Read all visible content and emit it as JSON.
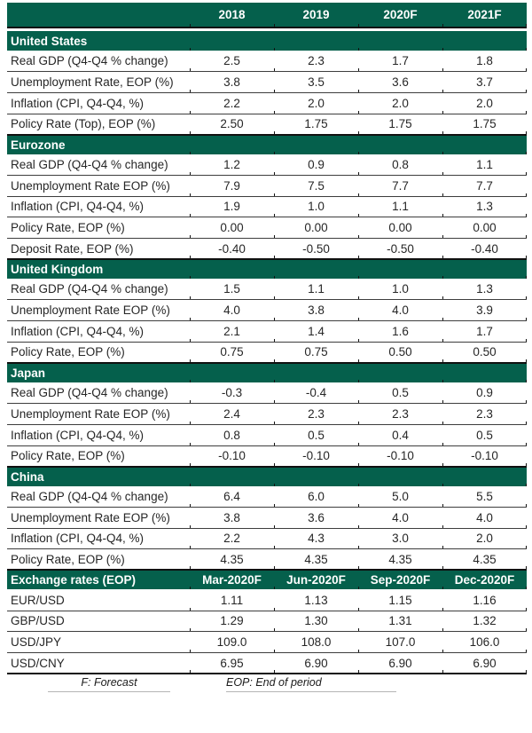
{
  "colors": {
    "brand_green": "#05604C",
    "heavy_rule": "#101010",
    "row_rule": "#3d3d3d",
    "body_text": "#262626",
    "header_text": "#ffffff",
    "footnote_rule": "#b4b4b4"
  },
  "chart_data": {
    "type": "table",
    "header": {
      "columns": [
        "2018",
        "2019",
        "2020F",
        "2021F"
      ]
    },
    "sections": [
      {
        "title": "United States",
        "rows": [
          {
            "label": "Real GDP (Q4-Q4 % change)",
            "values": [
              "2.5",
              "2.3",
              "1.7",
              "1.8"
            ]
          },
          {
            "label": "Unemployment Rate, EOP (%)",
            "values": [
              "3.8",
              "3.5",
              "3.6",
              "3.7"
            ]
          },
          {
            "label": "Inflation (CPI, Q4-Q4, %)",
            "values": [
              "2.2",
              "2.0",
              "2.0",
              "2.0"
            ]
          },
          {
            "label": "Policy Rate (Top), EOP (%)",
            "values": [
              "2.50",
              "1.75",
              "1.75",
              "1.75"
            ]
          }
        ]
      },
      {
        "title": "Eurozone",
        "rows": [
          {
            "label": "Real GDP (Q4-Q4 % change)",
            "values": [
              "1.2",
              "0.9",
              "0.8",
              "1.1"
            ]
          },
          {
            "label": "Unemployment Rate EOP (%)",
            "values": [
              "7.9",
              "7.5",
              "7.7",
              "7.7"
            ]
          },
          {
            "label": "Inflation (CPI, Q4-Q4, %)",
            "values": [
              "1.9",
              "1.0",
              "1.1",
              "1.3"
            ]
          },
          {
            "label": "Policy Rate, EOP (%)",
            "values": [
              "0.00",
              "0.00",
              "0.00",
              "0.00"
            ]
          },
          {
            "label": "Deposit Rate, EOP (%)",
            "values": [
              "-0.40",
              "-0.50",
              "-0.50",
              "-0.40"
            ]
          }
        ]
      },
      {
        "title": "United Kingdom",
        "rows": [
          {
            "label": "Real GDP (Q4-Q4 % change)",
            "values": [
              "1.5",
              "1.1",
              "1.0",
              "1.3"
            ]
          },
          {
            "label": "Unemployment Rate EOP (%)",
            "values": [
              "4.0",
              "3.8",
              "4.0",
              "3.9"
            ]
          },
          {
            "label": "Inflation (CPI, Q4-Q4, %)",
            "values": [
              "2.1",
              "1.4",
              "1.6",
              "1.7"
            ]
          },
          {
            "label": "Policy Rate, EOP (%)",
            "values": [
              "0.75",
              "0.75",
              "0.50",
              "0.50"
            ]
          }
        ]
      },
      {
        "title": "Japan",
        "rows": [
          {
            "label": "Real GDP (Q4-Q4 % change)",
            "values": [
              "-0.3",
              "-0.4",
              "0.5",
              "0.9"
            ]
          },
          {
            "label": "Unemployment Rate EOP (%)",
            "values": [
              "2.4",
              "2.3",
              "2.3",
              "2.3"
            ]
          },
          {
            "label": "Inflation (CPI, Q4-Q4, %)",
            "values": [
              "0.8",
              "0.5",
              "0.4",
              "0.5"
            ]
          },
          {
            "label": "Policy Rate, EOP (%)",
            "values": [
              "-0.10",
              "-0.10",
              "-0.10",
              "-0.10"
            ]
          }
        ]
      },
      {
        "title": "China",
        "rows": [
          {
            "label": "Real GDP (Q4-Q4 % change)",
            "values": [
              "6.4",
              "6.0",
              "5.0",
              "5.5"
            ]
          },
          {
            "label": "Unemployment Rate EOP (%)",
            "values": [
              "3.8",
              "3.6",
              "4.0",
              "4.0"
            ]
          },
          {
            "label": "Inflation (CPI, Q4-Q4, %)",
            "values": [
              "2.2",
              "4.3",
              "3.0",
              "2.0"
            ]
          },
          {
            "label": "Policy Rate, EOP (%)",
            "values": [
              "4.35",
              "4.35",
              "4.35",
              "4.35"
            ]
          }
        ]
      },
      {
        "title": "Exchange rates (EOP)",
        "columns": [
          "Mar-2020F",
          "Jun-2020F",
          "Sep-2020F",
          "Dec-2020F"
        ],
        "rows": [
          {
            "label": "EUR/USD",
            "values": [
              "1.11",
              "1.13",
              "1.15",
              "1.16"
            ]
          },
          {
            "label": "GBP/USD",
            "values": [
              "1.29",
              "1.30",
              "1.31",
              "1.32"
            ]
          },
          {
            "label": "USD/JPY",
            "values": [
              "109.0",
              "108.0",
              "107.0",
              "106.0"
            ]
          },
          {
            "label": "USD/CNY",
            "values": [
              "6.95",
              "6.90",
              "6.90",
              "6.90"
            ]
          }
        ]
      }
    ],
    "footnotes": {
      "forecast": "F: Forecast",
      "eop": "EOP: End of period"
    }
  }
}
